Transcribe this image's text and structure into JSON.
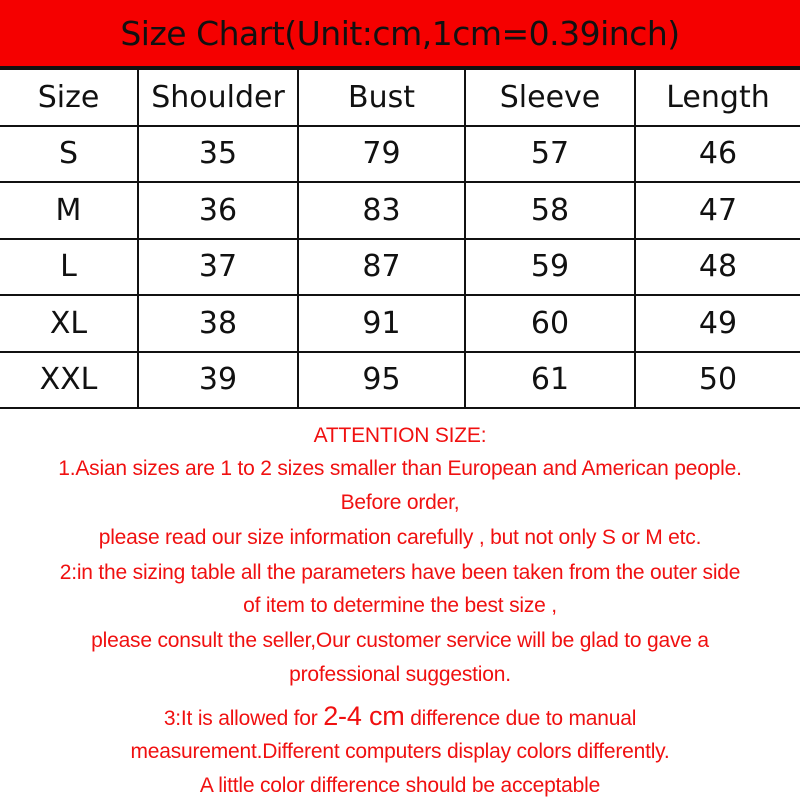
{
  "title": "Size Chart(Unit:cm,1cm=0.39inch)",
  "colors": {
    "header_bg": "#f50000",
    "note_text": "#f01010",
    "border": "#111111"
  },
  "table": {
    "headers": [
      "Size",
      "Shoulder",
      "Bust",
      "Sleeve",
      "Length"
    ],
    "rows": [
      [
        "S",
        "35",
        "79",
        "57",
        "46"
      ],
      [
        "M",
        "36",
        "83",
        "58",
        "47"
      ],
      [
        "L",
        "37",
        "87",
        "59",
        "48"
      ],
      [
        "XL",
        "38",
        "91",
        "60",
        "49"
      ],
      [
        "XXL",
        "39",
        "95",
        "61",
        "50"
      ]
    ]
  },
  "notes": {
    "heading": "ATTENTION SIZE:",
    "lines": [
      "1.Asian sizes are 1 to 2 sizes smaller than European and American people.",
      "Before order,",
      "please read our size information carefully  , but not only S or M etc.",
      "2:in the sizing table all the parameters have been taken from the outer side",
      "of item to determine the best size ,",
      "please consult the seller,Our customer service will be glad to gave a",
      "professional suggestion."
    ],
    "note3_prefix": "3:It is allowed for ",
    "note3_highlight": "2-4 cm",
    "note3_suffix": " difference due to manual",
    "tail_lines": [
      "measurement.Different computers display colors differently.",
      "A little color difference should be acceptable"
    ]
  }
}
